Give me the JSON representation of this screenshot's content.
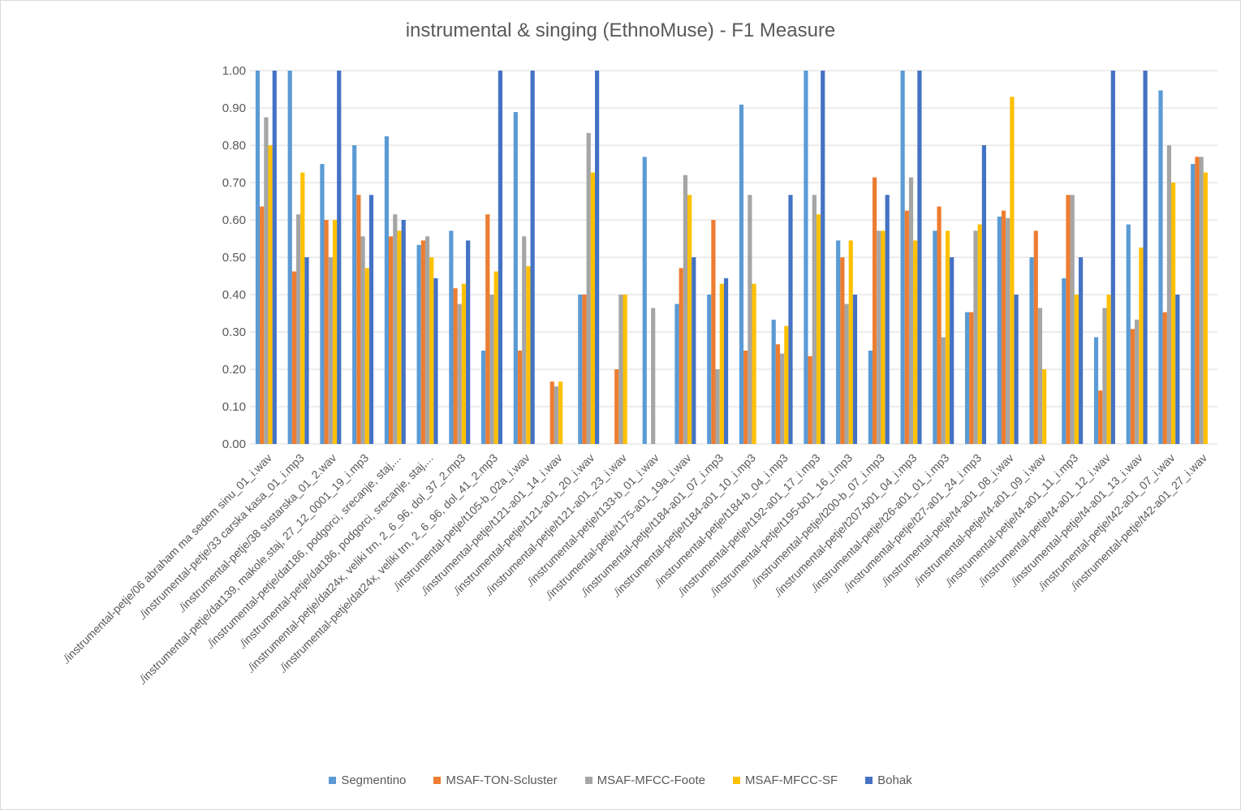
{
  "chart_data": {
    "type": "bar",
    "title": "instrumental & singing (EthnoMuse) - F1 Measure",
    "xlabel": "",
    "ylabel": "",
    "ylim": [
      0,
      1
    ],
    "yticks": [
      "0.00",
      "0.10",
      "0.20",
      "0.30",
      "0.40",
      "0.50",
      "0.60",
      "0.70",
      "0.80",
      "0.90",
      "1.00"
    ],
    "grid": true,
    "legend": "bottom",
    "categories": [
      "./instrumental-petje/06 abraham ma sedem sinu_01_i.wav",
      "./instrumental-petje/33 carska kasa_01_i.mp3",
      "./instrumental-petje/38 sustarska_01_2.wav",
      "./instrumental-petje/dat139, makole,staj, 27_12_0001_19_i.mp3",
      "./instrumental-petje/dat186, podgorci, srecanje, staj,...",
      "./instrumental-petje/dat186, podgorci, srecanje, staj,...",
      "./instrumental-petje/dat24x, veliki trn, 2_6_96, dol_37_2.mp3",
      "./instrumental-petje/dat24x, veliki trn, 2_6_96, dol_41_2.mp3",
      "./instrumental-petje/t105-b_02a_i.wav",
      "./instrumental-petje/t121-a01_14_i.wav",
      "./instrumental-petje/t121-a01_20_i.wav",
      "./instrumental-petje/t121-a01_23_i.wav",
      "./instrumental-petje/t133-b_01_i.wav",
      "./instrumental-petje/t175-a01_19a_i.wav",
      "./instrumental-petje/t184-a01_07_i.mp3",
      "./instrumental-petje/t184-a01_10_i.mp3",
      "./instrumental-petje/t184-b_04_i.mp3",
      "./instrumental-petje/t192-a01_17_i.mp3",
      "./instrumental-petje/t195-b01_16_i.mp3",
      "./instrumental-petje/t200-b_07_i.mp3",
      "./instrumental-petje/t207-b01_04_i.mp3",
      "./instrumental-petje/t26-a01_01_i.mp3",
      "./instrumental-petje/t27-a01_24_i.mp3",
      "./instrumental-petje/t4-a01_08_i.wav",
      "./instrumental-petje/t4-a01_09_i.wav",
      "./instrumental-petje/t4-a01_11_i.mp3",
      "./instrumental-petje/t4-a01_12_i.wav",
      "./instrumental-petje/t4-a01_13_i.wav",
      "./instrumental-petje/t42-a01_07_i.wav",
      "./instrumental-petje/t42-a01_27_i.wav"
    ],
    "series": [
      {
        "name": "Segmentino",
        "color": "#5B9BD5",
        "values": [
          1.0,
          1.0,
          0.75,
          0.8,
          0.824,
          0.533,
          0.571,
          0.25,
          0.889,
          0,
          0.4,
          0,
          0.769,
          0.375,
          0.4,
          0.909,
          0.333,
          1.0,
          0.545,
          0.25,
          1.0,
          0.571,
          0.353,
          0.609,
          0.5,
          0.444,
          0.286,
          0.588,
          0.947,
          0.75
        ]
      },
      {
        "name": "MSAF-TON-Scluster",
        "color": "#ED7D31",
        "values": [
          0.636,
          0.462,
          0.6,
          0.667,
          0.556,
          0.545,
          0.417,
          0.615,
          0.25,
          0.167,
          0.4,
          0.2,
          0,
          0.471,
          0.6,
          0.25,
          0.267,
          0.235,
          0.5,
          0.714,
          0.625,
          0.636,
          0.353,
          0.625,
          0.571,
          0.667,
          0.143,
          0.308,
          0.353,
          0.769
        ]
      },
      {
        "name": "MSAF-MFCC-Foote",
        "color": "#A5A5A5",
        "values": [
          0.875,
          0.615,
          0.5,
          0.556,
          0.615,
          0.556,
          0.375,
          0.4,
          0.556,
          0.154,
          0.833,
          0.4,
          0.364,
          0.72,
          0.2,
          0.667,
          0.242,
          0.667,
          0.375,
          0.571,
          0.714,
          0.286,
          0.571,
          0.605,
          0.364,
          0.667,
          0.364,
          0.333,
          0.8,
          0.769
        ]
      },
      {
        "name": "MSAF-MFCC-SF",
        "color": "#FFC000",
        "values": [
          0.8,
          0.727,
          0.6,
          0.471,
          0.571,
          0.5,
          0.429,
          0.462,
          0.476,
          0.167,
          0.727,
          0.4,
          0,
          0.667,
          0.429,
          0.429,
          0.316,
          0.615,
          0.545,
          0.571,
          0.545,
          0.571,
          0.588,
          0.93,
          0.2,
          0.4,
          0.4,
          0.526,
          0.7,
          0.727
        ]
      },
      {
        "name": "Bohak",
        "color": "#4472C4",
        "values": [
          1.0,
          0.5,
          1.0,
          0.667,
          0.6,
          0.444,
          0.545,
          1.0,
          1.0,
          0,
          1.0,
          0,
          0,
          0.5,
          0.444,
          0,
          0.667,
          1.0,
          0.4,
          0.667,
          1.0,
          0.5,
          0.8,
          0.4,
          0,
          0.5,
          1.0,
          1.0,
          0.4,
          0
        ]
      }
    ]
  }
}
